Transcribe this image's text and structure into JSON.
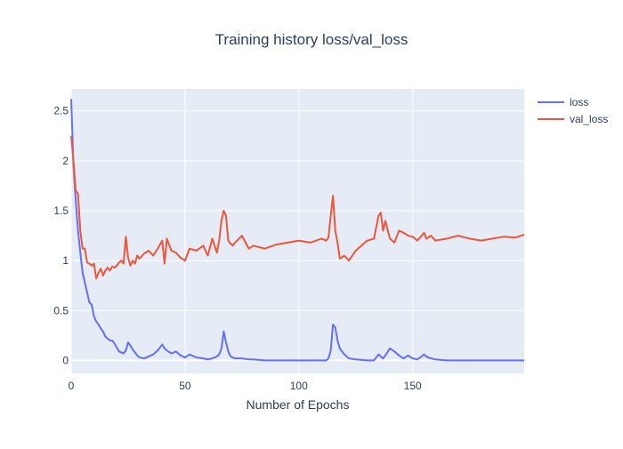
{
  "chart_data": {
    "type": "line",
    "title": "Training history loss/val_loss",
    "xlabel": "Number of Epochs",
    "ylabel": "",
    "xlim": [
      0,
      199
    ],
    "ylim": [
      -0.13,
      2.72
    ],
    "x_ticks": [
      0,
      50,
      100,
      150
    ],
    "y_ticks": [
      0,
      0.5,
      1,
      1.5,
      2,
      2.5
    ],
    "grid": true,
    "legend": "top-right",
    "x_anchors": [
      0,
      1,
      2,
      3,
      4,
      5,
      6,
      7,
      8,
      9,
      10,
      11,
      12,
      13,
      14,
      15,
      16,
      17,
      18,
      19,
      20,
      21,
      22,
      23,
      24,
      25,
      26,
      27,
      28,
      29,
      30,
      32,
      34,
      36,
      38,
      40,
      41,
      42,
      44,
      46,
      48,
      50,
      52,
      55,
      58,
      60,
      62,
      64,
      65,
      66,
      67,
      68,
      69,
      70,
      71,
      72,
      75,
      78,
      80,
      85,
      90,
      95,
      100,
      105,
      110,
      112,
      113,
      114,
      115,
      116,
      117,
      118,
      120,
      122,
      125,
      130,
      133,
      135,
      136,
      137,
      138,
      140,
      142,
      144,
      146,
      148,
      150,
      152,
      154,
      155,
      156,
      158,
      160,
      165,
      170,
      175,
      180,
      185,
      190,
      195,
      199
    ],
    "series": [
      {
        "name": "loss",
        "color": "#636efa",
        "values": [
          2.62,
          1.95,
          1.6,
          1.3,
          1.08,
          0.88,
          0.78,
          0.68,
          0.58,
          0.56,
          0.44,
          0.39,
          0.36,
          0.32,
          0.29,
          0.24,
          0.22,
          0.2,
          0.2,
          0.17,
          0.13,
          0.09,
          0.08,
          0.07,
          0.1,
          0.18,
          0.15,
          0.11,
          0.08,
          0.05,
          0.03,
          0.02,
          0.04,
          0.06,
          0.1,
          0.16,
          0.12,
          0.1,
          0.07,
          0.09,
          0.05,
          0.03,
          0.06,
          0.03,
          0.02,
          0.01,
          0.02,
          0.04,
          0.06,
          0.12,
          0.29,
          0.18,
          0.09,
          0.04,
          0.03,
          0.02,
          0.02,
          0.01,
          0.01,
          0.0,
          0.0,
          0.0,
          0.0,
          0.0,
          0.0,
          0.0,
          0.02,
          0.1,
          0.36,
          0.33,
          0.2,
          0.12,
          0.06,
          0.02,
          0.01,
          0.0,
          0.0,
          0.06,
          0.04,
          0.02,
          0.05,
          0.12,
          0.09,
          0.05,
          0.02,
          0.05,
          0.02,
          0.01,
          0.04,
          0.06,
          0.04,
          0.02,
          0.01,
          0.0,
          0.0,
          0.0,
          0.0,
          0.0,
          0.0,
          0.0,
          0.0
        ]
      },
      {
        "name": "val_loss",
        "color": "#ef553b",
        "values": [
          2.25,
          2.0,
          1.7,
          1.67,
          1.3,
          1.12,
          1.12,
          0.98,
          0.97,
          0.95,
          0.97,
          0.82,
          0.88,
          0.92,
          0.85,
          0.9,
          0.93,
          0.9,
          0.94,
          0.93,
          0.95,
          0.98,
          1.0,
          0.97,
          1.24,
          1.03,
          0.95,
          1.0,
          0.97,
          1.05,
          1.02,
          1.07,
          1.1,
          1.05,
          1.12,
          1.2,
          0.97,
          1.22,
          1.1,
          1.08,
          1.03,
          1.0,
          1.12,
          1.1,
          1.15,
          1.05,
          1.22,
          1.08,
          1.2,
          1.4,
          1.5,
          1.45,
          1.2,
          1.17,
          1.15,
          1.18,
          1.25,
          1.12,
          1.15,
          1.12,
          1.16,
          1.18,
          1.2,
          1.18,
          1.22,
          1.2,
          1.23,
          1.45,
          1.65,
          1.3,
          1.18,
          1.02,
          1.05,
          1.0,
          1.1,
          1.2,
          1.22,
          1.45,
          1.48,
          1.3,
          1.4,
          1.22,
          1.18,
          1.3,
          1.28,
          1.25,
          1.24,
          1.2,
          1.25,
          1.28,
          1.22,
          1.25,
          1.2,
          1.22,
          1.25,
          1.22,
          1.2,
          1.22,
          1.24,
          1.23,
          1.26
        ]
      }
    ]
  }
}
